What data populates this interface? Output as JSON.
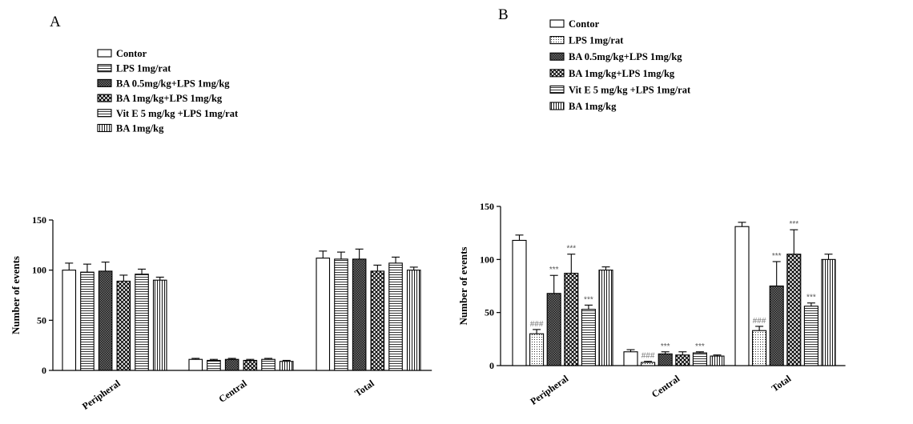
{
  "chart_data": [
    {
      "type": "bar",
      "panel_label": "A",
      "ylabel": "Number of events",
      "ylim": [
        0,
        150
      ],
      "yticks": [
        "0",
        "50",
        "100",
        "150"
      ],
      "categories": [
        "Peripheral",
        "Central",
        "Total"
      ],
      "series": [
        {
          "name": "Contor",
          "pattern": "open",
          "values": [
            100,
            11,
            112
          ],
          "errors": [
            7,
            1,
            7
          ],
          "annotations": [
            "",
            "",
            ""
          ]
        },
        {
          "name": "LPS 1mg/rat",
          "pattern": "hlines",
          "values": [
            98,
            10,
            111
          ],
          "errors": [
            8,
            1,
            7
          ],
          "annotations": [
            "",
            "",
            ""
          ]
        },
        {
          "name": "BA 0.5mg/kg+LPS 1mg/kg",
          "pattern": "dark",
          "values": [
            99,
            11,
            111
          ],
          "errors": [
            9,
            1,
            10
          ],
          "annotations": [
            "",
            "",
            ""
          ]
        },
        {
          "name": "BA 1mg/kg+LPS 1mg/kg",
          "pattern": "check",
          "values": [
            89,
            10,
            99
          ],
          "errors": [
            6,
            1,
            6
          ],
          "annotations": [
            "",
            "",
            ""
          ]
        },
        {
          "name": "Vit E 5 mg/kg +LPS 1mg/rat",
          "pattern": "hlines",
          "values": [
            96,
            11,
            107
          ],
          "errors": [
            5,
            1,
            6
          ],
          "annotations": [
            "",
            "",
            ""
          ]
        },
        {
          "name": "BA 1mg/kg",
          "pattern": "vlines",
          "values": [
            90,
            9,
            100
          ],
          "errors": [
            3,
            1,
            3
          ],
          "annotations": [
            "",
            "",
            ""
          ]
        }
      ],
      "legend_position": "top"
    },
    {
      "type": "bar",
      "panel_label": "B",
      "ylabel": "Number of events",
      "ylim": [
        0,
        150
      ],
      "yticks": [
        "0",
        "50",
        "100",
        "150"
      ],
      "categories": [
        "Peripheral",
        "Central",
        "Total"
      ],
      "series": [
        {
          "name": "Contor",
          "pattern": "open",
          "values": [
            118,
            13,
            131
          ],
          "errors": [
            5,
            2,
            4
          ],
          "annotations": [
            "",
            "",
            ""
          ]
        },
        {
          "name": "LPS 1mg/rat",
          "pattern": "dots",
          "values": [
            30,
            3,
            33
          ],
          "errors": [
            4,
            1,
            4
          ],
          "annotations": [
            "###",
            "###",
            "###"
          ]
        },
        {
          "name": "BA 0.5mg/kg+LPS 1mg/kg",
          "pattern": "dark",
          "values": [
            68,
            11,
            75
          ],
          "errors": [
            17,
            2,
            23
          ],
          "annotations": [
            "***",
            "***",
            "***"
          ]
        },
        {
          "name": "BA 1mg/kg+LPS 1mg/kg",
          "pattern": "check",
          "values": [
            87,
            10,
            105
          ],
          "errors": [
            18,
            3,
            23
          ],
          "annotations": [
            "***",
            "",
            "***"
          ]
        },
        {
          "name": "Vit E 5 mg/kg +LPS 1mg/rat",
          "pattern": "hlines",
          "values": [
            53,
            12,
            56
          ],
          "errors": [
            4,
            1,
            3
          ],
          "annotations": [
            "***",
            "***",
            "***"
          ]
        },
        {
          "name": "BA 1mg/kg",
          "pattern": "vlines",
          "values": [
            90,
            9,
            100
          ],
          "errors": [
            3,
            1,
            5
          ],
          "annotations": [
            "",
            "",
            ""
          ]
        }
      ],
      "legend_position": "top"
    }
  ]
}
